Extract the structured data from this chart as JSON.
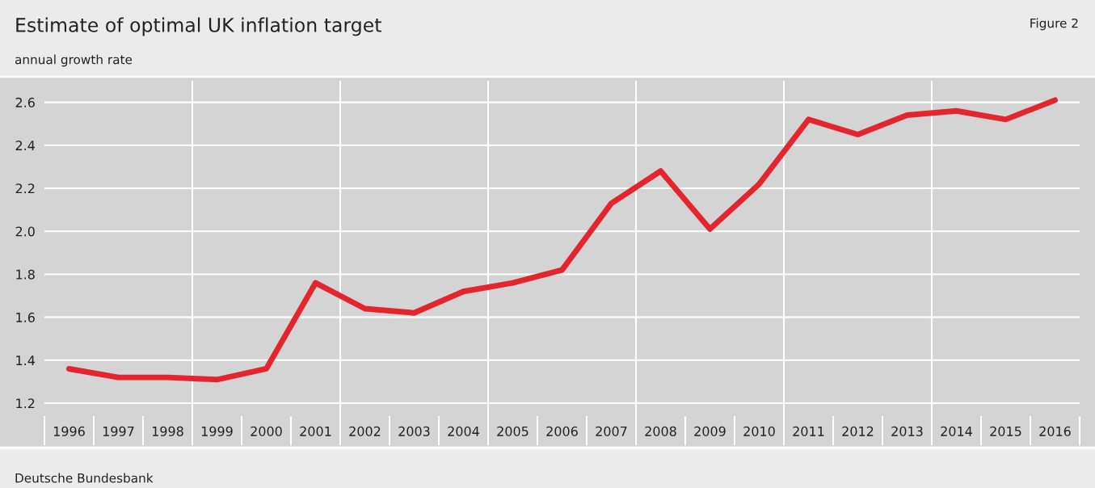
{
  "chart_data": {
    "type": "line",
    "title": "Estimate of optimal UK inflation target",
    "subtitle": "annual growth rate",
    "categories": [
      "1996",
      "1997",
      "1998",
      "1999",
      "2000",
      "2001",
      "2002",
      "2003",
      "2004",
      "2005",
      "2006",
      "2007",
      "2008",
      "2009",
      "2010",
      "2011",
      "2012",
      "2013",
      "2014",
      "2015",
      "2016"
    ],
    "series": [
      {
        "color": "#e3262e",
        "values": [
          1.36,
          1.32,
          1.32,
          1.31,
          1.36,
          1.76,
          1.64,
          1.62,
          1.72,
          1.76,
          1.82,
          2.13,
          2.28,
          2.01,
          2.22,
          2.52,
          2.45,
          2.54,
          2.56,
          2.52,
          2.61
        ]
      }
    ],
    "ylim": [
      1.14,
      2.7
    ],
    "yticks": [
      {
        "value": 1.2,
        "label": "1.2"
      },
      {
        "value": 1.4,
        "label": "1.4"
      },
      {
        "value": 1.6,
        "label": "1.6"
      },
      {
        "value": 1.8,
        "label": "1.8"
      },
      {
        "value": 2.0,
        "label": "2.0"
      },
      {
        "value": 2.2,
        "label": "2.2"
      },
      {
        "value": 2.4,
        "label": "2.4"
      },
      {
        "value": 2.6,
        "label": "2.6"
      }
    ],
    "grid": true,
    "marker": "none",
    "line_style": "solid",
    "legend": false,
    "annotations": [
      "Figure 2",
      "Deutsche Bundesbank"
    ]
  }
}
